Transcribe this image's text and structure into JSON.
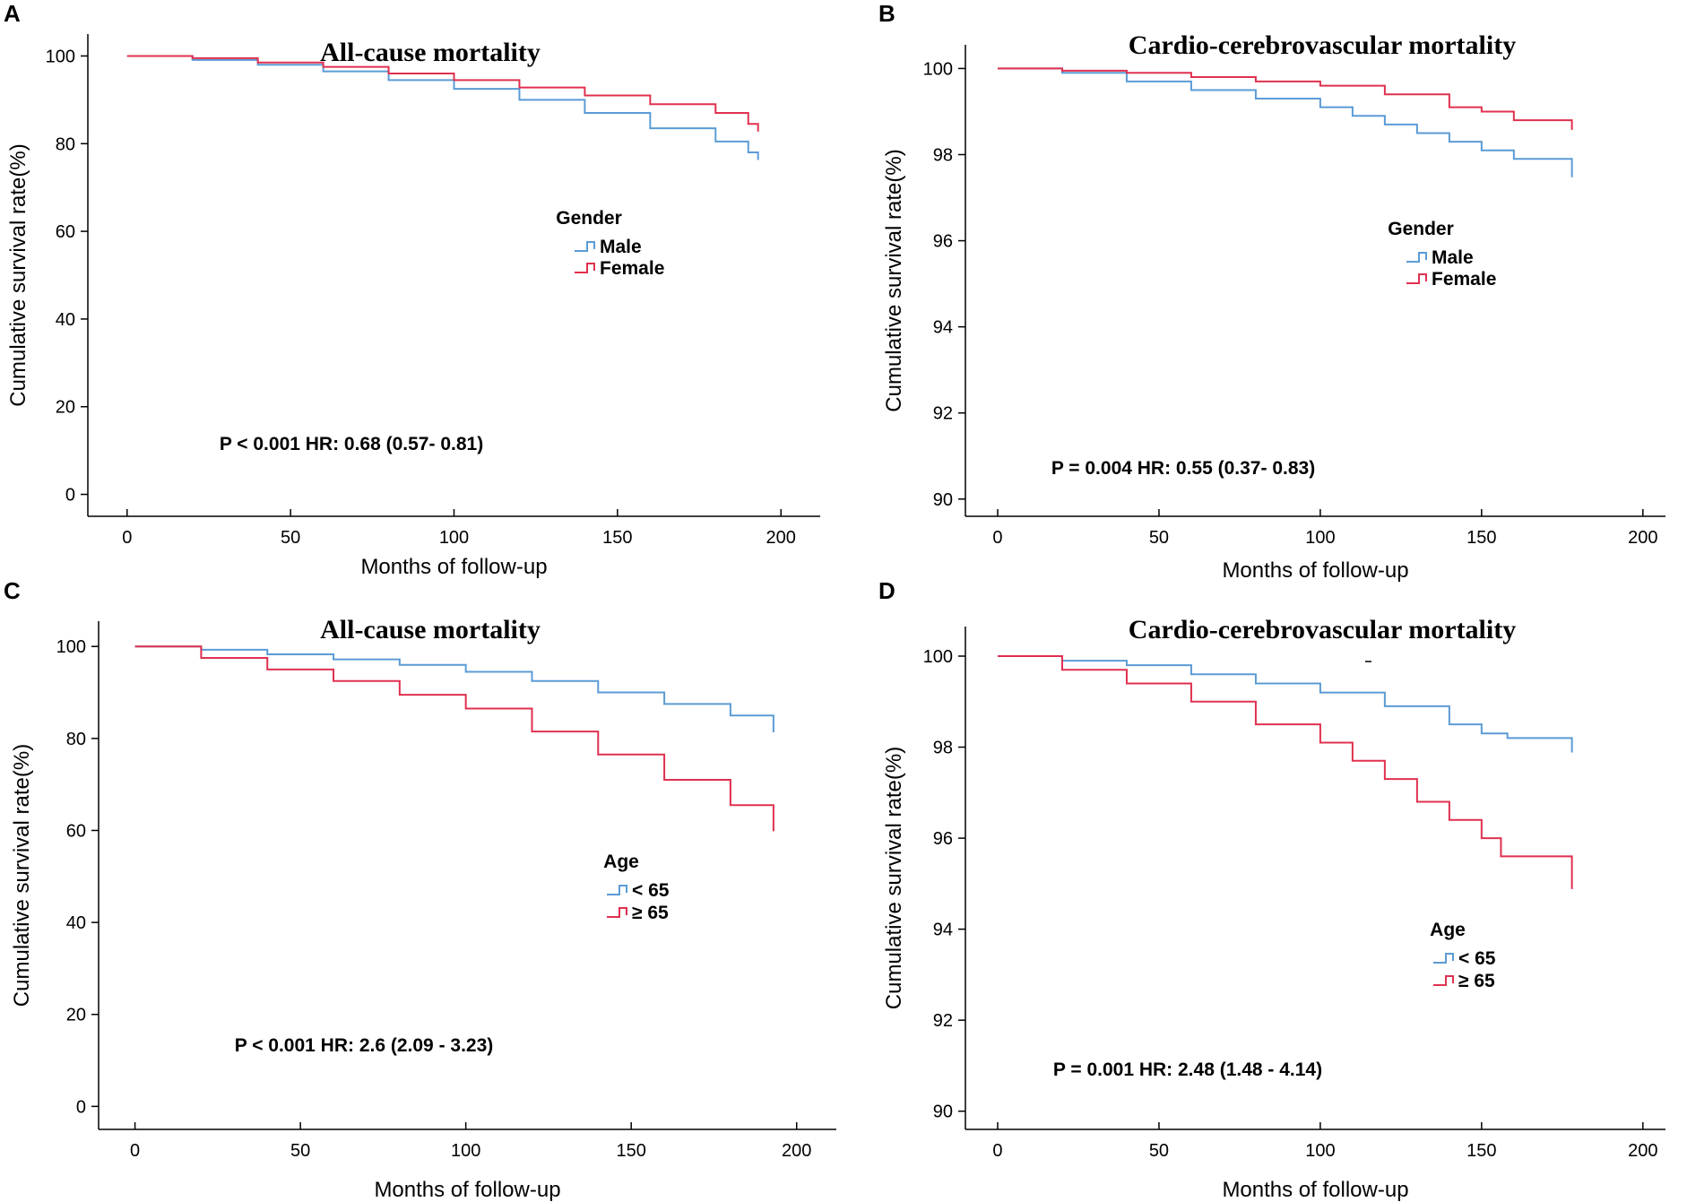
{
  "colors": {
    "male_or_young": "#5b9bd5",
    "female_or_old": "#e0304f"
  },
  "chart_data": [
    {
      "type": "line",
      "panel": "A",
      "title": "All-cause mortality",
      "xlabel": "Months of follow-up",
      "ylabel": "Cumulative survival rate(%)",
      "xlim": [
        -12,
        212
      ],
      "ylim": [
        -5,
        105
      ],
      "xticks": [
        0,
        50,
        100,
        150,
        200
      ],
      "yticks": [
        0,
        20,
        40,
        60,
        80,
        100
      ],
      "legend_title": "Gender",
      "annotation": "P < 0.001  HR: 0.68 (0.57- 0.81)",
      "series": [
        {
          "name": "Male",
          "color": "#5b9bd5",
          "x": [
            0,
            20,
            40,
            60,
            80,
            100,
            120,
            140,
            160,
            180,
            190,
            193
          ],
          "y": [
            100,
            99.1,
            98,
            96.5,
            94.5,
            92.5,
            90,
            87,
            83.5,
            80.5,
            78,
            77.5
          ]
        },
        {
          "name": "Female",
          "color": "#e0304f",
          "x": [
            0,
            20,
            40,
            60,
            80,
            100,
            120,
            140,
            160,
            180,
            190,
            193
          ],
          "y": [
            100,
            99.5,
            98.5,
            97.5,
            96,
            94.5,
            92.8,
            91,
            89,
            87,
            84.5,
            84
          ]
        }
      ]
    },
    {
      "type": "line",
      "panel": "B",
      "title": "Cardio-cerebrovascular mortality",
      "xlabel": "Months of follow-up",
      "ylabel": "Cumulative survival rate(%)",
      "xlim": [
        -10,
        207
      ],
      "ylim": [
        89.6,
        100.55
      ],
      "xticks": [
        0,
        50,
        100,
        150,
        200
      ],
      "yticks": [
        90,
        92,
        94,
        96,
        98,
        100
      ],
      "legend_title": "Gender",
      "annotation": "P = 0.004 HR: 0.55 (0.37- 0.83)",
      "series": [
        {
          "name": "Male",
          "color": "#5b9bd5",
          "x": [
            0,
            20,
            40,
            60,
            80,
            100,
            110,
            120,
            130,
            140,
            150,
            160,
            178
          ],
          "y": [
            100,
            99.9,
            99.7,
            99.5,
            99.3,
            99.1,
            98.9,
            98.7,
            98.5,
            98.3,
            98.1,
            97.9,
            97.6
          ]
        },
        {
          "name": "Female",
          "color": "#e0304f",
          "x": [
            0,
            20,
            40,
            60,
            80,
            100,
            120,
            140,
            150,
            160,
            178
          ],
          "y": [
            100,
            99.95,
            99.9,
            99.8,
            99.7,
            99.6,
            99.4,
            99.1,
            99,
            98.8,
            98.7
          ]
        }
      ]
    },
    {
      "type": "line",
      "panel": "C",
      "title": "All-cause mortality",
      "xlabel": "Months of follow-up",
      "ylabel": "Cumulative survival rate(%)",
      "xlim": [
        -11,
        212
      ],
      "ylim": [
        -5,
        105.5
      ],
      "xticks": [
        0,
        50,
        100,
        150,
        200
      ],
      "yticks": [
        0,
        20,
        40,
        60,
        80,
        100
      ],
      "legend_title": "Age",
      "legend_items": [
        "< 65",
        "≥ 65"
      ],
      "annotation": "P < 0.001  HR: 2.6 (2.09 - 3.23)",
      "series": [
        {
          "name": "< 65",
          "color": "#5b9bd5",
          "x": [
            0,
            20,
            40,
            60,
            80,
            100,
            120,
            140,
            160,
            180,
            193
          ],
          "y": [
            100,
            99.3,
            98.3,
            97.2,
            96,
            94.5,
            92.5,
            90,
            87.5,
            85,
            82.5
          ]
        },
        {
          "name": "≥ 65",
          "color": "#e0304f",
          "x": [
            0,
            20,
            40,
            60,
            80,
            100,
            120,
            140,
            160,
            180,
            193
          ],
          "y": [
            100,
            97.5,
            95,
            92.5,
            89.5,
            86.5,
            81.5,
            76.5,
            71,
            65.5,
            61
          ]
        }
      ]
    },
    {
      "type": "line",
      "panel": "D",
      "title": "Cardio-cerebrovascular mortality",
      "xlabel": "Months of follow-up",
      "ylabel": "Cumulative survival rate(%)",
      "xlim": [
        -10,
        207
      ],
      "ylim": [
        89.6,
        100.65
      ],
      "xticks": [
        0,
        50,
        100,
        150,
        200
      ],
      "yticks": [
        90,
        92,
        94,
        96,
        98,
        100
      ],
      "legend_title": "Age",
      "legend_items": [
        "< 65",
        "≥ 65"
      ],
      "annotation": "P = 0.001 HR: 2.48 (1.48 - 4.14)",
      "series": [
        {
          "name": "< 65",
          "color": "#5b9bd5",
          "x": [
            0,
            20,
            40,
            60,
            80,
            100,
            120,
            140,
            150,
            158,
            178
          ],
          "y": [
            100,
            99.9,
            99.8,
            99.6,
            99.4,
            99.2,
            98.9,
            98.5,
            98.3,
            98.2,
            98
          ]
        },
        {
          "name": "≥ 65",
          "color": "#e0304f",
          "x": [
            0,
            20,
            40,
            60,
            80,
            100,
            110,
            120,
            130,
            140,
            150,
            156,
            178
          ],
          "y": [
            100,
            99.7,
            99.4,
            99,
            98.5,
            98.1,
            97.7,
            97.3,
            96.8,
            96.4,
            96,
            95.6,
            95
          ]
        }
      ]
    }
  ]
}
